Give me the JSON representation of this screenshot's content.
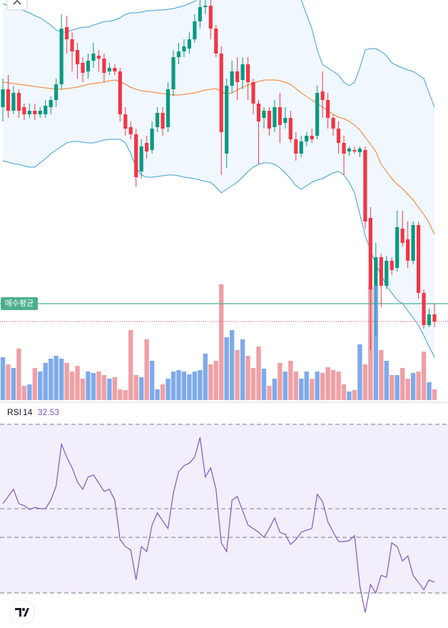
{
  "chart_data": {
    "type": "candlestick",
    "ylim": [
      40,
      600
    ],
    "up_color": "#089981",
    "down_color": "#f23645",
    "open": [
      450,
      475,
      445,
      470,
      450,
      440,
      445,
      440,
      440,
      450,
      460,
      482,
      562,
      545,
      530,
      512,
      500,
      515,
      522,
      518,
      500,
      505,
      500,
      440,
      422,
      412,
      360,
      400,
      390,
      422,
      442,
      422,
      475,
      520,
      528,
      532,
      545,
      570,
      590,
      592,
      560,
      525,
      385,
      480,
      500,
      488,
      510,
      485,
      455,
      435,
      445,
      422,
      450,
      428,
      435,
      405,
      385,
      402,
      410,
      410,
      472,
      460,
      435,
      420,
      400,
      388,
      390,
      387,
      390,
      295,
      200,
      240,
      200,
      235,
      225,
      280,
      265,
      235,
      285,
      190,
      145,
      160
    ],
    "close": [
      475,
      445,
      470,
      445,
      440,
      445,
      440,
      445,
      452,
      460,
      482,
      560,
      545,
      528,
      510,
      498,
      515,
      525,
      518,
      498,
      505,
      500,
      440,
      420,
      412,
      352,
      395,
      388,
      420,
      442,
      420,
      475,
      520,
      528,
      535,
      545,
      570,
      590,
      592,
      560,
      525,
      415,
      480,
      500,
      485,
      510,
      485,
      455,
      430,
      445,
      420,
      450,
      425,
      435,
      405,
      385,
      402,
      410,
      405,
      470,
      460,
      435,
      420,
      400,
      385,
      392,
      388,
      392,
      290,
      195,
      240,
      200,
      235,
      222,
      282,
      260,
      235,
      285,
      190,
      145,
      160,
      150
    ],
    "high": [
      490,
      495,
      480,
      475,
      455,
      455,
      455,
      450,
      460,
      465,
      490,
      580,
      578,
      555,
      540,
      520,
      525,
      540,
      530,
      525,
      512,
      510,
      505,
      450,
      430,
      420,
      405,
      410,
      430,
      450,
      450,
      485,
      530,
      540,
      545,
      555,
      580,
      600,
      600,
      600,
      565,
      535,
      490,
      515,
      520,
      520,
      520,
      490,
      460,
      450,
      450,
      460,
      470,
      450,
      445,
      415,
      410,
      415,
      420,
      480,
      500,
      470,
      440,
      430,
      410,
      395,
      395,
      395,
      395,
      310,
      260,
      245,
      242,
      240,
      305,
      305,
      290,
      290,
      290,
      195,
      168,
      175
    ],
    "low": [
      430,
      435,
      440,
      435,
      432,
      435,
      432,
      435,
      435,
      440,
      450,
      475,
      525,
      500,
      490,
      485,
      490,
      505,
      500,
      485,
      495,
      495,
      430,
      410,
      405,
      338,
      350,
      378,
      385,
      415,
      410,
      415,
      465,
      510,
      520,
      525,
      540,
      560,
      580,
      545,
      520,
      355,
      365,
      470,
      460,
      475,
      460,
      440,
      370,
      420,
      410,
      415,
      400,
      420,
      400,
      375,
      380,
      395,
      400,
      405,
      435,
      420,
      410,
      385,
      355,
      382,
      385,
      380,
      280,
      110,
      130,
      170,
      195,
      215,
      220,
      255,
      225,
      230,
      182,
      140,
      142,
      142
    ],
    "volume": [
      60,
      50,
      45,
      72,
      20,
      22,
      45,
      40,
      52,
      58,
      62,
      58,
      52,
      40,
      48,
      30,
      40,
      38,
      40,
      35,
      30,
      32,
      15,
      14,
      98,
      35,
      32,
      85,
      55,
      15,
      22,
      30,
      40,
      42,
      40,
      36,
      40,
      42,
      65,
      50,
      55,
      162,
      88,
      98,
      70,
      85,
      62,
      45,
      75,
      44,
      20,
      30,
      52,
      40,
      55,
      40,
      30,
      40,
      30,
      40,
      38,
      46,
      42,
      40,
      22,
      12,
      14,
      78,
      50,
      158,
      160,
      70,
      55,
      35,
      35,
      45,
      30,
      38,
      40,
      68,
      25,
      15
    ],
    "volume_lim": [
      0,
      180
    ],
    "volume_up_color": "#7eaaea",
    "volume_down_color": "#eea0a5",
    "bollinger": {
      "upper": [
        595,
        592,
        590,
        588,
        585,
        582,
        578,
        575,
        570,
        565,
        558,
        555,
        555,
        558,
        560,
        562,
        562,
        565,
        567,
        570,
        570,
        572,
        575,
        580,
        582,
        582,
        583,
        585,
        585,
        586,
        586,
        587,
        588,
        590,
        592,
        595,
        598,
        605,
        610,
        615,
        618,
        620,
        620,
        618,
        616,
        615,
        614,
        613,
        612,
        612,
        611,
        610,
        609,
        608,
        606,
        604,
        600,
        580,
        560,
        530,
        510,
        505,
        500,
        495,
        485,
        480,
        485,
        505,
        530,
        532,
        532,
        528,
        522,
        512,
        508,
        505,
        502,
        500,
        495,
        490,
        470,
        450
      ],
      "middle": [
        485,
        484,
        483,
        482,
        481,
        480,
        479,
        478,
        477,
        476,
        475,
        475,
        476,
        477,
        478,
        480,
        482,
        483,
        484,
        485,
        487,
        488,
        486,
        482,
        478,
        475,
        473,
        472,
        471,
        470,
        469,
        468,
        467,
        467,
        468,
        469,
        470,
        472,
        474,
        475,
        476,
        472,
        468,
        470,
        474,
        478,
        481,
        484,
        486,
        488,
        488,
        488,
        487,
        485,
        482,
        476,
        470,
        465,
        460,
        455,
        450,
        445,
        440,
        436,
        434,
        430,
        425,
        418,
        408,
        398,
        388,
        370,
        360,
        350,
        342,
        336,
        328,
        320,
        310,
        300,
        288,
        272
      ],
      "lower": [
        375,
        373,
        371,
        370,
        368,
        366,
        366,
        372,
        378,
        385,
        390,
        395,
        400,
        402,
        402,
        401,
        400,
        400,
        402,
        404,
        405,
        405,
        405,
        400,
        385,
        365,
        355,
        352,
        352,
        353,
        354,
        355,
        355,
        354,
        352,
        351,
        350,
        348,
        346,
        345,
        338,
        330,
        335,
        340,
        345,
        352,
        360,
        366,
        370,
        372,
        372,
        370,
        365,
        358,
        350,
        340,
        335,
        340,
        345,
        348,
        350,
        354,
        358,
        360,
        355,
        345,
        330,
        300,
        270,
        250,
        230,
        215,
        200,
        190,
        180,
        175,
        165,
        155,
        145,
        130,
        115,
        100
      ],
      "band_color": "#3d9fd6",
      "middle_color": "#f57c2b",
      "fill_color": "#eaf3fd"
    },
    "avg_price": {
      "label": "매수평균",
      "value": 175,
      "color": "#4caf8f"
    },
    "rsi": {
      "name": "RSI",
      "period": 14,
      "color": "#7e57c2",
      "ylim": [
        21.7,
        74.9
      ],
      "levels": [
        70,
        50,
        43.2,
        30
      ],
      "band_color": "#f3eefb",
      "values": [
        51.2,
        52.9,
        54.6,
        51.2,
        50.7,
        49.8,
        50.3,
        50.0,
        50.0,
        52.0,
        55.4,
        65.3,
        62.2,
        59.7,
        56.3,
        54.6,
        57.5,
        58.0,
        56.1,
        54.1,
        54.6,
        52.0,
        42.7,
        41.0,
        40.2,
        33.1,
        41.0,
        39.8,
        46.1,
        49.0,
        47.1,
        45.3,
        53.7,
        58.8,
        60.2,
        60.8,
        62.2,
        66.9,
        57.5,
        59.7,
        54.6,
        41.9,
        39.8,
        52.0,
        52.9,
        49.5,
        46.1,
        45.3,
        44.4,
        43.2,
        45.3,
        47.8,
        44.4,
        43.9,
        41.5,
        42.7,
        44.4,
        44.9,
        45.3,
        53.4,
        51.7,
        46.9,
        44.4,
        42.2,
        42.2,
        42.4,
        43.6,
        31.7,
        25.4,
        32.0,
        30.0,
        34.2,
        33.7,
        41.9,
        41.0,
        37.6,
        38.8,
        34.2,
        32.5,
        30.8,
        33.1,
        32.53
      ]
    }
  }
}
